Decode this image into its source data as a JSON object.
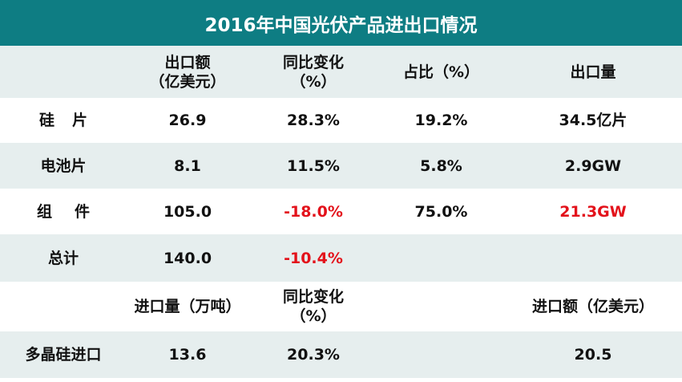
{
  "title": "2016年中国光伏产品进出口情况",
  "colors": {
    "header_bg": "#0e7d83",
    "row_light": "#ffffff",
    "row_dark": "#e6eeee",
    "negative": "#e3121b"
  },
  "export_header": {
    "col1_line1": "出口额",
    "col1_line2": "（亿美元）",
    "col2_line1": "同比变化",
    "col2_line2": "（%）",
    "col3": "占比（%）",
    "col4": "出口量"
  },
  "rows": [
    {
      "label": "硅片",
      "export_value": "26.9",
      "yoy": "28.3%",
      "share": "19.2%",
      "volume": "34.5亿片"
    },
    {
      "label": "电池片",
      "export_value": "8.1",
      "yoy": "11.5%",
      "share": "5.8%",
      "volume": "2.9GW"
    },
    {
      "label": "组件",
      "export_value": "105.0",
      "yoy": "-18.0%",
      "share": "75.0%",
      "volume": "21.3GW"
    },
    {
      "label": "总计",
      "export_value": "140.0",
      "yoy": "-10.4%",
      "share": "",
      "volume": ""
    }
  ],
  "import_header": {
    "col1": "进口量（万吨）",
    "col2_line1": "同比变化",
    "col2_line2": "（%）",
    "col4": "进口额（亿美元）"
  },
  "import_row": {
    "label": "多晶硅进口",
    "volume": "13.6",
    "yoy": "20.3%",
    "value": "20.5"
  }
}
